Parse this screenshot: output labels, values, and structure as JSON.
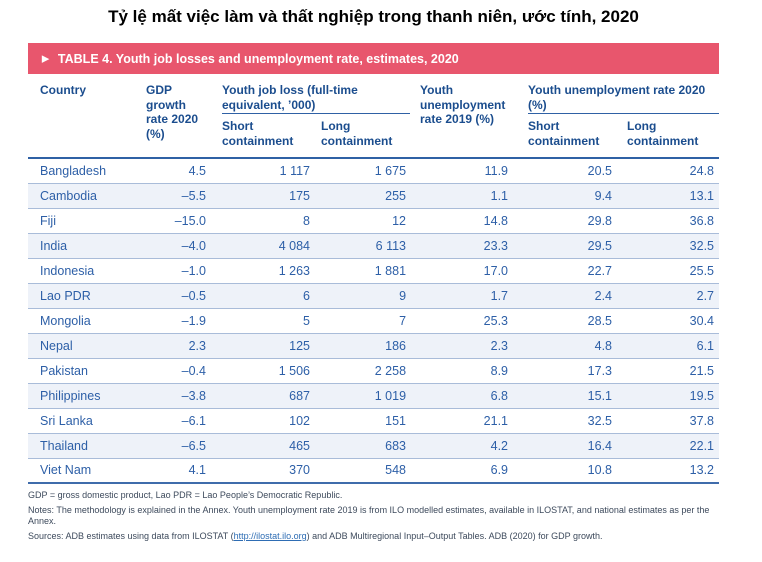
{
  "title": "Tỷ lệ mất việc làm và thất nghiệp trong thanh niên, ước tính, 2020",
  "colors": {
    "banner": "#e8566d",
    "header_text": "#1b4d8e",
    "data_text": "#2d5fa7",
    "alt_row": "#eef2f9",
    "link": "#2e6db4"
  },
  "table": {
    "banner_icon": "▶",
    "banner_title": "TABLE 4. Youth job losses and unemployment rate, estimates, 2020",
    "headers": {
      "country": "Country",
      "gdp": "GDP growth rate 2020 (%)",
      "job_loss_group": "Youth job loss (full-time equivalent, ’000)",
      "unemp_2019": "Youth unemployment rate 2019 (%)",
      "unemp_2020_group": "Youth unemployment rate 2020 (%)",
      "short_containment": "Short containment",
      "long_containment": "Long containment"
    },
    "rows": [
      {
        "country": "Bangladesh",
        "gdp": "4.5",
        "jl_short": "1 117",
        "jl_long": "1 675",
        "ur2019": "11.9",
        "ur_short": "20.5",
        "ur_long": "24.8"
      },
      {
        "country": "Cambodia",
        "gdp": "–5.5",
        "jl_short": "175",
        "jl_long": "255",
        "ur2019": "1.1",
        "ur_short": "9.4",
        "ur_long": "13.1"
      },
      {
        "country": "Fiji",
        "gdp": "–15.0",
        "jl_short": "8",
        "jl_long": "12",
        "ur2019": "14.8",
        "ur_short": "29.8",
        "ur_long": "36.8"
      },
      {
        "country": "India",
        "gdp": "–4.0",
        "jl_short": "4 084",
        "jl_long": "6 113",
        "ur2019": "23.3",
        "ur_short": "29.5",
        "ur_long": "32.5"
      },
      {
        "country": "Indonesia",
        "gdp": "–1.0",
        "jl_short": "1 263",
        "jl_long": "1 881",
        "ur2019": "17.0",
        "ur_short": "22.7",
        "ur_long": "25.5"
      },
      {
        "country": "Lao PDR",
        "gdp": "–0.5",
        "jl_short": "6",
        "jl_long": "9",
        "ur2019": "1.7",
        "ur_short": "2.4",
        "ur_long": "2.7"
      },
      {
        "country": "Mongolia",
        "gdp": "–1.9",
        "jl_short": "5",
        "jl_long": "7",
        "ur2019": "25.3",
        "ur_short": "28.5",
        "ur_long": "30.4"
      },
      {
        "country": "Nepal",
        "gdp": "2.3",
        "jl_short": "125",
        "jl_long": "186",
        "ur2019": "2.3",
        "ur_short": "4.8",
        "ur_long": "6.1"
      },
      {
        "country": "Pakistan",
        "gdp": "–0.4",
        "jl_short": "1 506",
        "jl_long": "2 258",
        "ur2019": "8.9",
        "ur_short": "17.3",
        "ur_long": "21.5"
      },
      {
        "country": "Philippines",
        "gdp": "–3.8",
        "jl_short": "687",
        "jl_long": "1 019",
        "ur2019": "6.8",
        "ur_short": "15.1",
        "ur_long": "19.5"
      },
      {
        "country": "Sri Lanka",
        "gdp": "–6.1",
        "jl_short": "102",
        "jl_long": "151",
        "ur2019": "21.1",
        "ur_short": "32.5",
        "ur_long": "37.8"
      },
      {
        "country": "Thailand",
        "gdp": "–6.5",
        "jl_short": "465",
        "jl_long": "683",
        "ur2019": "4.2",
        "ur_short": "16.4",
        "ur_long": "22.1"
      },
      {
        "country": "Viet Nam",
        "gdp": "4.1",
        "jl_short": "370",
        "jl_long": "548",
        "ur2019": "6.9",
        "ur_short": "10.8",
        "ur_long": "13.2"
      }
    ]
  },
  "footnotes": {
    "abbrev": "GDP = gross domestic product, Lao PDR = Lao People’s Democratic Republic.",
    "notes": "Notes: The methodology is explained in the Annex. Youth unemployment rate 2019 is from ILO modelled estimates, available in ILOSTAT, and national estimates as per the Annex.",
    "sources_prefix": "Sources: ADB estimates using data from ILOSTAT (",
    "sources_link": "http://ilostat.ilo.org",
    "sources_suffix": ") and ADB Multiregional Input–Output Tables. ADB (2020) for GDP growth."
  }
}
